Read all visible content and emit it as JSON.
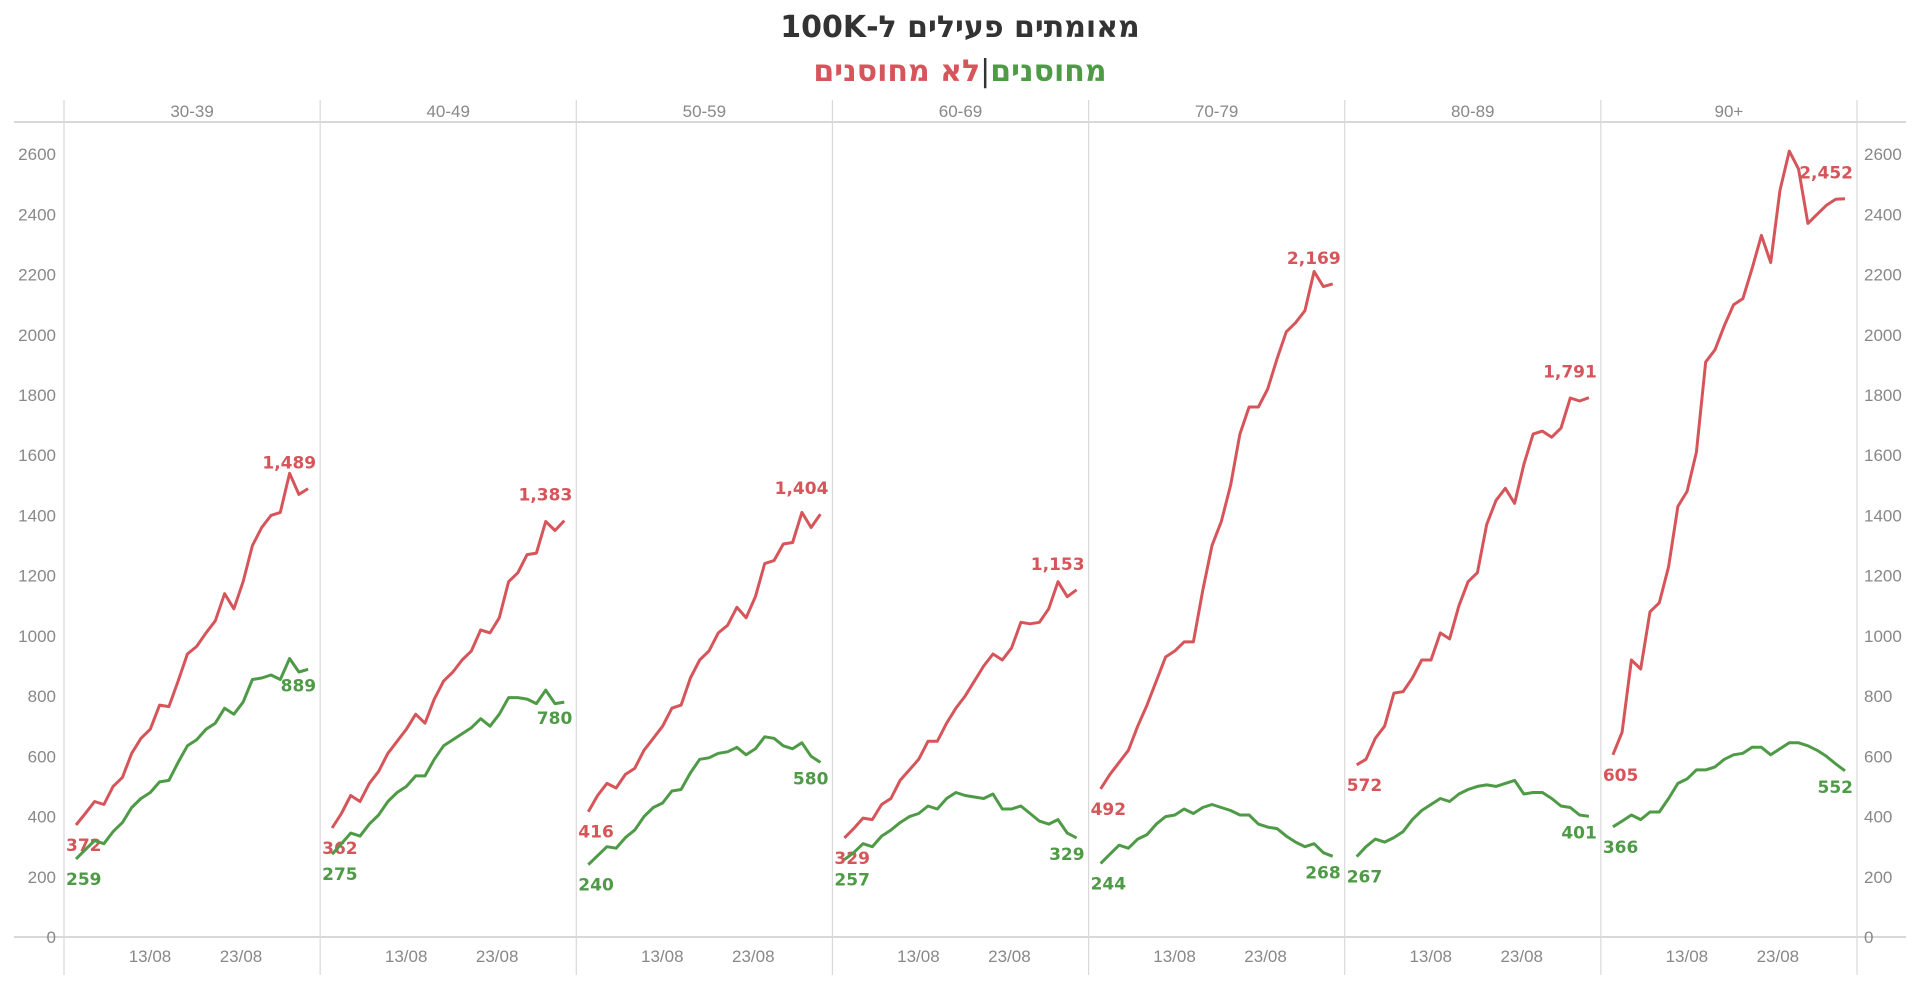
{
  "title": "מאומתים פעילים ל-100K",
  "subtitle": {
    "vaccinated": "מחוסנים",
    "separator": "|",
    "unvaccinated": "לא מחוסנים"
  },
  "colors": {
    "vaccinated": "#4e9a46",
    "unvaccinated": "#d6555a",
    "grid": "#d9d9d9",
    "text": "#888888"
  },
  "chart_data": {
    "type": "line",
    "ylim": [
      0,
      2700
    ],
    "yticks": [
      0,
      200,
      400,
      600,
      800,
      1000,
      1200,
      1400,
      1600,
      1800,
      2000,
      2200,
      2400,
      2600
    ],
    "xtick_labels": [
      "13/08",
      "23/08"
    ],
    "grid": false,
    "panels": [
      {
        "age_group": "30-39",
        "series": [
          {
            "name": "לא מחוסנים",
            "start_label": "372",
            "end_label": "1,489",
            "values": [
              372,
              410,
              450,
              440,
              500,
              530,
              610,
              660,
              690,
              770,
              765,
              850,
              940,
              965,
              1010,
              1050,
              1140,
              1090,
              1180,
              1300,
              1360,
              1400,
              1410,
              1540,
              1470,
              1489
            ]
          },
          {
            "name": "מחוסנים",
            "start_label": "259",
            "end_label": "889",
            "values": [
              259,
              290,
              320,
              310,
              350,
              380,
              430,
              460,
              480,
              515,
              520,
              580,
              635,
              655,
              690,
              710,
              760,
              740,
              780,
              855,
              860,
              870,
              855,
              925,
              880,
              889
            ]
          }
        ]
      },
      {
        "age_group": "40-49",
        "series": [
          {
            "name": "לא מחוסנים",
            "start_label": "362",
            "end_label": "1,383",
            "values": [
              362,
              410,
              470,
              450,
              510,
              550,
              610,
              650,
              690,
              740,
              710,
              790,
              850,
              880,
              920,
              950,
              1020,
              1010,
              1060,
              1180,
              1210,
              1270,
              1275,
              1380,
              1350,
              1383
            ]
          },
          {
            "name": "מחוסנים",
            "start_label": "275",
            "end_label": "780",
            "values": [
              275,
              310,
              345,
              335,
              375,
              405,
              450,
              480,
              500,
              535,
              535,
              590,
              635,
              655,
              675,
              695,
              725,
              700,
              740,
              795,
              795,
              790,
              775,
              820,
              775,
              780
            ]
          }
        ]
      },
      {
        "age_group": "50-59",
        "series": [
          {
            "name": "לא מחוסנים",
            "start_label": "416",
            "end_label": "1,404",
            "values": [
              416,
              470,
              510,
              495,
              540,
              560,
              620,
              660,
              700,
              760,
              770,
              860,
              920,
              950,
              1010,
              1035,
              1095,
              1060,
              1130,
              1240,
              1250,
              1305,
              1310,
              1410,
              1360,
              1404
            ]
          },
          {
            "name": "מחוסנים",
            "start_label": "240",
            "end_label": "580",
            "values": [
              240,
              270,
              300,
              295,
              330,
              355,
              400,
              430,
              445,
              485,
              490,
              545,
              590,
              595,
              610,
              615,
              630,
              605,
              625,
              665,
              660,
              635,
              625,
              645,
              600,
              580
            ]
          }
        ]
      },
      {
        "age_group": "60-69",
        "series": [
          {
            "name": "לא מחוסנים",
            "start_label": "329",
            "end_label": "1,153",
            "values": [
              329,
              360,
              395,
              390,
              440,
              460,
              520,
              555,
              590,
              650,
              650,
              710,
              760,
              800,
              850,
              900,
              940,
              920,
              960,
              1045,
              1040,
              1045,
              1090,
              1180,
              1130,
              1153
            ]
          },
          {
            "name": "מחוסנים",
            "start_label": "257",
            "end_label": "329",
            "values": [
              257,
              280,
              310,
              300,
              335,
              355,
              380,
              400,
              410,
              435,
              425,
              460,
              480,
              470,
              465,
              460,
              475,
              425,
              425,
              435,
              410,
              385,
              375,
              390,
              345,
              329
            ]
          }
        ]
      },
      {
        "age_group": "70-79",
        "series": [
          {
            "name": "לא מחוסנים",
            "start_label": "492",
            "end_label": "2,169",
            "values": [
              492,
              540,
              580,
              620,
              700,
              770,
              850,
              930,
              950,
              980,
              980,
              1150,
              1300,
              1380,
              1500,
              1670,
              1760,
              1760,
              1820,
              1920,
              2010,
              2040,
              2080,
              2210,
              2160,
              2169
            ]
          },
          {
            "name": "מחוסנים",
            "start_label": "244",
            "end_label": "268",
            "values": [
              244,
              275,
              305,
              295,
              325,
              340,
              375,
              400,
              405,
              425,
              410,
              430,
              440,
              430,
              420,
              405,
              405,
              375,
              365,
              360,
              335,
              315,
              300,
              310,
              280,
              268
            ]
          }
        ]
      },
      {
        "age_group": "80-89",
        "series": [
          {
            "name": "לא מחוסנים",
            "start_label": "572",
            "end_label": "1,791",
            "values": [
              572,
              590,
              660,
              700,
              810,
              815,
              860,
              920,
              920,
              1010,
              990,
              1100,
              1180,
              1210,
              1370,
              1450,
              1490,
              1440,
              1570,
              1670,
              1680,
              1660,
              1690,
              1790,
              1780,
              1791
            ]
          },
          {
            "name": "מחוסנים",
            "start_label": "267",
            "end_label": "401",
            "values": [
              267,
              300,
              325,
              315,
              330,
              350,
              390,
              420,
              440,
              460,
              450,
              475,
              490,
              500,
              505,
              500,
              510,
              520,
              475,
              480,
              480,
              460,
              435,
              430,
              405,
              401
            ]
          }
        ]
      },
      {
        "age_group": "90+",
        "series": [
          {
            "name": "לא מחוסנים",
            "start_label": "605",
            "end_label": "2,452",
            "values": [
              605,
              680,
              920,
              890,
              1080,
              1110,
              1230,
              1430,
              1480,
              1610,
              1910,
              1950,
              2030,
              2100,
              2120,
              2220,
              2330,
              2240,
              2480,
              2610,
              2550,
              2370,
              2400,
              2430,
              2450,
              2452
            ]
          },
          {
            "name": "מחוסנים",
            "start_label": "366",
            "end_label": "552",
            "values": [
              366,
              385,
              405,
              390,
              415,
              415,
              460,
              510,
              525,
              555,
              555,
              565,
              590,
              605,
              610,
              630,
              630,
              605,
              625,
              645,
              645,
              635,
              620,
              600,
              575,
              552
            ]
          }
        ]
      }
    ]
  }
}
